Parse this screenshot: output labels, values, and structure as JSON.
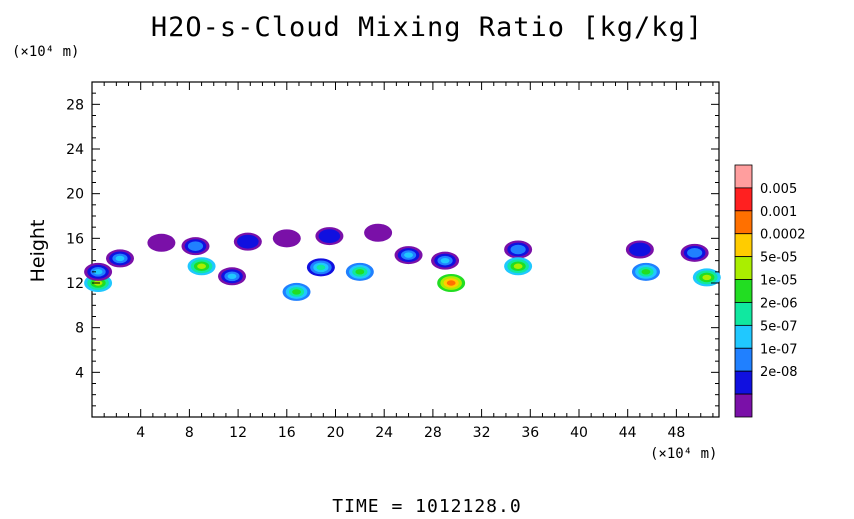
{
  "chart_data": {
    "type": "heatmap",
    "title": "H2O-s-Cloud Mixing Ratio [kg/kg]",
    "ylabel": "Height",
    "y_unit": "(×10⁴ m)",
    "x_unit": "(×10⁴ m)",
    "xlim": [
      0,
      51.5
    ],
    "ylim": [
      0,
      30
    ],
    "x_ticks": [
      4,
      8,
      12,
      16,
      20,
      24,
      28,
      32,
      36,
      40,
      44,
      48
    ],
    "y_ticks": [
      4,
      8,
      12,
      16,
      20,
      24,
      28
    ],
    "colorbar": {
      "levels": [
        "0.005",
        "0.001",
        "0.0002",
        "5e-05",
        "1e-05",
        "2e-06",
        "5e-07",
        "1e-07",
        "2e-08"
      ],
      "colors": [
        "#ff9e9e",
        "#ff2020",
        "#ff7000",
        "#ffcc00",
        "#aaee00",
        "#22dd22",
        "#10e8a0",
        "#20c8ff",
        "#2080ff",
        "#1010e0",
        "#7a10a8"
      ]
    },
    "cloud_patches": [
      {
        "x": 0.5,
        "y": 12.0,
        "level": 4
      },
      {
        "x": 0.5,
        "y": 13.0,
        "level": 7
      },
      {
        "x": 2.3,
        "y": 14.2,
        "level": 7
      },
      {
        "x": 5.7,
        "y": 15.6,
        "level": 10
      },
      {
        "x": 8.5,
        "y": 15.3,
        "level": 8
      },
      {
        "x": 9.0,
        "y": 13.5,
        "level": 4
      },
      {
        "x": 11.5,
        "y": 12.6,
        "level": 7
      },
      {
        "x": 12.8,
        "y": 15.7,
        "level": 9
      },
      {
        "x": 16.0,
        "y": 16.0,
        "level": 10
      },
      {
        "x": 19.5,
        "y": 16.2,
        "level": 9
      },
      {
        "x": 23.5,
        "y": 16.5,
        "level": 10
      },
      {
        "x": 18.8,
        "y": 13.4,
        "level": 6
      },
      {
        "x": 22.0,
        "y": 13.0,
        "level": 5
      },
      {
        "x": 16.8,
        "y": 11.2,
        "level": 5
      },
      {
        "x": 26.0,
        "y": 14.5,
        "level": 7
      },
      {
        "x": 29.0,
        "y": 14.0,
        "level": 7
      },
      {
        "x": 29.5,
        "y": 12.0,
        "level": 2
      },
      {
        "x": 35.0,
        "y": 15.0,
        "level": 8
      },
      {
        "x": 35.0,
        "y": 13.5,
        "level": 4
      },
      {
        "x": 45.5,
        "y": 13.0,
        "level": 5
      },
      {
        "x": 45.0,
        "y": 15.0,
        "level": 9
      },
      {
        "x": 49.5,
        "y": 14.7,
        "level": 8
      },
      {
        "x": 50.5,
        "y": 12.5,
        "level": 4
      }
    ],
    "time_label": "TIME = 1012128.0"
  }
}
